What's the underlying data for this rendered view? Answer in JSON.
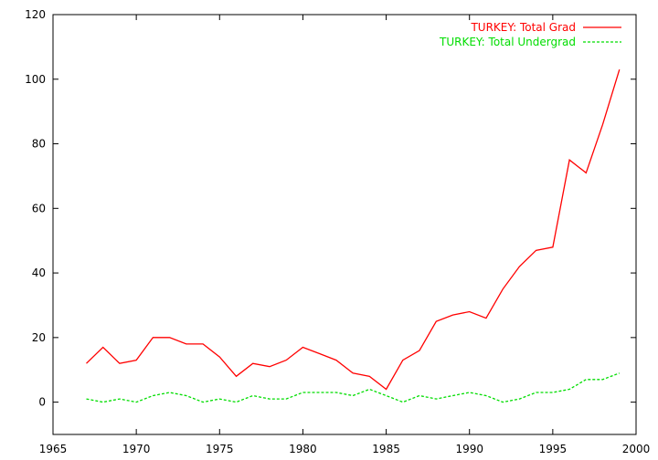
{
  "chart_data": {
    "type": "line",
    "title": "",
    "xlabel": "",
    "ylabel": "",
    "xlim": [
      1965,
      2000
    ],
    "ylim": [
      -10,
      120
    ],
    "xticks": [
      1965,
      1970,
      1975,
      1980,
      1985,
      1990,
      1995,
      2000
    ],
    "yticks": [
      0,
      20,
      40,
      60,
      80,
      100,
      120
    ],
    "grid": false,
    "legend_position": "top-right",
    "x": [
      1967,
      1968,
      1969,
      1970,
      1971,
      1972,
      1973,
      1974,
      1975,
      1976,
      1977,
      1978,
      1979,
      1980,
      1981,
      1982,
      1983,
      1984,
      1985,
      1986,
      1987,
      1988,
      1989,
      1990,
      1991,
      1992,
      1993,
      1994,
      1995,
      1996,
      1997,
      1998,
      1999
    ],
    "series": [
      {
        "name": "TURKEY: Total Grad",
        "color": "#ff0000",
        "dash": "solid",
        "values": [
          12,
          17,
          12,
          13,
          20,
          20,
          18,
          18,
          14,
          8,
          12,
          11,
          13,
          17,
          15,
          13,
          9,
          8,
          4,
          13,
          16,
          25,
          27,
          28,
          26,
          35,
          42,
          47,
          48,
          75,
          71,
          86,
          103
        ]
      },
      {
        "name": "TURKEY: Total Undergrad",
        "color": "#00dd00",
        "dash": "dashed",
        "values": [
          1,
          0,
          1,
          0,
          2,
          3,
          2,
          0,
          1,
          0,
          2,
          1,
          1,
          3,
          3,
          3,
          2,
          4,
          2,
          0,
          2,
          1,
          2,
          3,
          2,
          0,
          1,
          3,
          3,
          4,
          7,
          7,
          9
        ]
      }
    ]
  }
}
